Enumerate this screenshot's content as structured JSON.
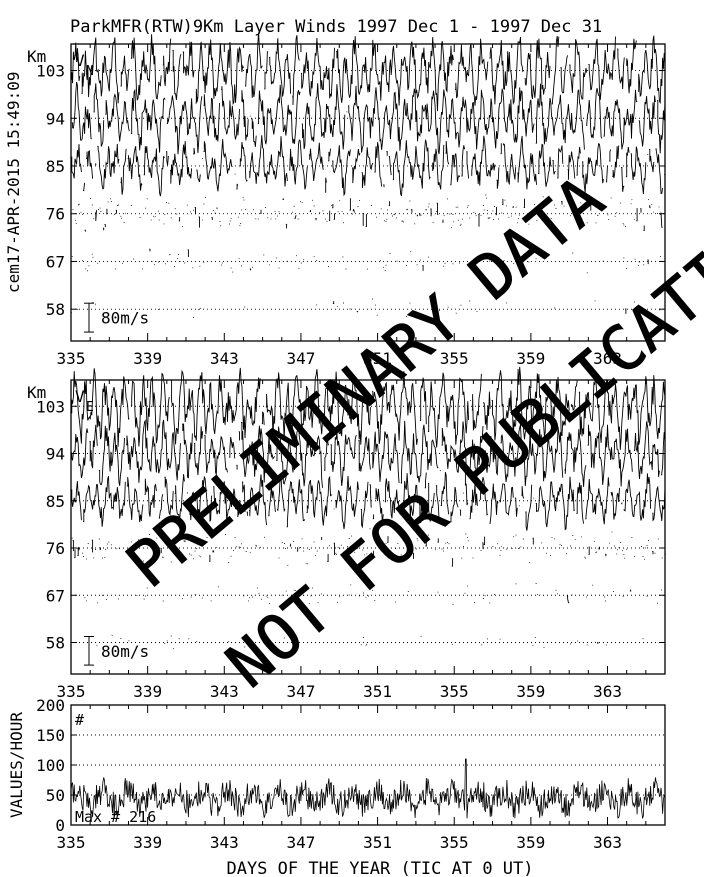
{
  "title": "ParkMFR(RTW)9Km Layer Winds 1997 Dec  1 - 1997 Dec 31",
  "side_stamp": "cem17-APR-2015 15:49:09",
  "xlabel": "DAYS OF THE YEAR (TIC AT 0 UT)",
  "watermark": [
    "PRELIMINARY DATA",
    "NOT FOR PUBLICATION"
  ],
  "chart_data": [
    {
      "type": "line",
      "panel": "V_N",
      "panel_label": "V",
      "panel_label_sub": "N",
      "ylabel": "Km",
      "xlim": [
        335,
        366
      ],
      "x_ticks": [
        335,
        339,
        343,
        347,
        351,
        355,
        359,
        363
      ],
      "ylim": [
        52,
        108
      ],
      "heights_km": [
        58,
        67,
        76,
        85,
        94,
        103
      ],
      "grid": "dotted horizontal at each height",
      "scale_bar": "80m/s",
      "scale_bar_ms": 80,
      "series_density": [
        0.05,
        0.12,
        0.35,
        0.92,
        0.97,
        0.96
      ],
      "series_amplitude_ms": [
        25,
        30,
        45,
        70,
        85,
        95
      ]
    },
    {
      "type": "line",
      "panel": "V_E",
      "panel_label": "V",
      "panel_label_sub": "E",
      "ylabel": "Km",
      "xlim": [
        335,
        366
      ],
      "x_ticks": [
        335,
        339,
        343,
        347,
        351,
        355,
        359,
        363
      ],
      "ylim": [
        52,
        108
      ],
      "heights_km": [
        58,
        67,
        76,
        85,
        94,
        103
      ],
      "grid": "dotted horizontal at each height",
      "scale_bar": "80m/s",
      "scale_bar_ms": 80,
      "series_density": [
        0.05,
        0.1,
        0.3,
        0.92,
        0.97,
        0.97
      ],
      "series_amplitude_ms": [
        25,
        30,
        45,
        70,
        85,
        100
      ]
    },
    {
      "type": "line",
      "panel": "counts",
      "panel_label": "#",
      "ylabel": "VALUES/HOUR",
      "xlabel": "DAYS OF THE YEAR (TIC AT 0 UT)",
      "xlim": [
        335,
        366
      ],
      "x_ticks": [
        335,
        339,
        343,
        347,
        351,
        355,
        359,
        363
      ],
      "ylim": [
        0,
        200
      ],
      "y_ticks": [
        0,
        50,
        100,
        150,
        200
      ],
      "grid": "dotted horizontal at 50, 100, 150",
      "max_label": "Max # 216",
      "mean_level": 45,
      "max_value": 216
    }
  ]
}
